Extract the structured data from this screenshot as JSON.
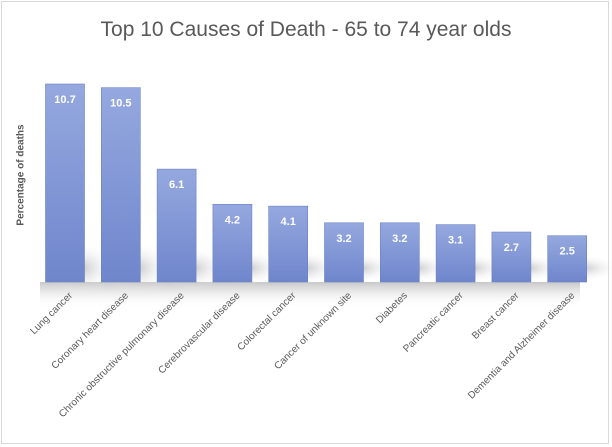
{
  "chart_data": {
    "type": "bar",
    "title": "Top 10 Causes of Death - 65 to 74 year olds",
    "xlabel": "",
    "ylabel": "Percentage of deaths",
    "categories": [
      "Lung cancer",
      "Coronary heart disease",
      "Chronic obstructive pulmonary disease",
      "Cerebrovascular disease",
      "Colorectal cancer",
      "Cancer of unknown site",
      "Diabetes",
      "Pancreatic cancer",
      "Breast cancer",
      "Dementia and Alzheimer disease"
    ],
    "values": [
      10.7,
      10.5,
      6.1,
      4.2,
      4.1,
      3.2,
      3.2,
      3.1,
      2.7,
      2.5
    ],
    "value_labels": [
      "10.7",
      "10.5",
      "6.1",
      "4.2",
      "4.1",
      "3.2",
      "3.2",
      "3.1",
      "2.7",
      "2.5"
    ],
    "ylim": [
      0,
      10.7
    ],
    "grid": false,
    "legend": "none",
    "data_labels": "inside-top",
    "colors": {
      "bar_top": "#95a8df",
      "bar_bottom": "#6f86cc",
      "bar_edge": "#6a80c6",
      "floor_shadow": "#c8c8c8",
      "label_text": "#ffffff",
      "axis_text": "#595959"
    }
  }
}
